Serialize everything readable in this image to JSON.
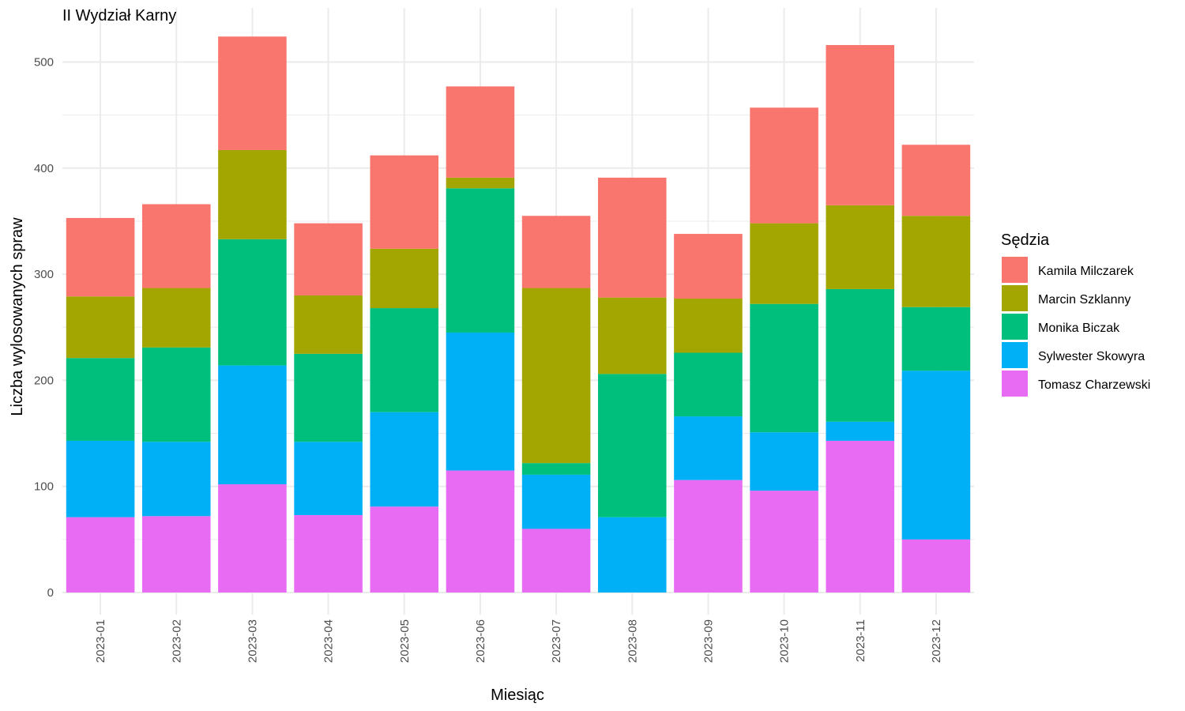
{
  "chart_data": {
    "type": "bar",
    "stacked": true,
    "title": "II Wydział Karny",
    "xlabel": "Miesiąc",
    "ylabel": "Liczba wylosowanych spraw",
    "ylim": [
      0,
      545
    ],
    "yticks": [
      0,
      100,
      200,
      300,
      400,
      500
    ],
    "grid": true,
    "legend_position": "right",
    "legend_title": "Sędzia",
    "categories": [
      "2023-01",
      "2023-02",
      "2023-03",
      "2023-04",
      "2023-05",
      "2023-06",
      "2023-07",
      "2023-08",
      "2023-09",
      "2023-10",
      "2023-11",
      "2023-12"
    ],
    "series": [
      {
        "name": "Tomasz Charzewski",
        "color": "#E76BF3",
        "values": [
          71,
          72,
          102,
          73,
          81,
          115,
          60,
          0,
          106,
          96,
          143,
          50
        ]
      },
      {
        "name": "Sylwester Skowyra",
        "color": "#00B0F6",
        "values": [
          72,
          70,
          112,
          69,
          89,
          130,
          51,
          71,
          60,
          55,
          18,
          159
        ]
      },
      {
        "name": "Monika Biczak",
        "color": "#00BF7D",
        "values": [
          78,
          89,
          119,
          83,
          98,
          136,
          11,
          135,
          60,
          121,
          125,
          60
        ]
      },
      {
        "name": "Marcin Szklanny",
        "color": "#A3A500",
        "values": [
          58,
          56,
          84,
          55,
          56,
          10,
          165,
          72,
          51,
          76,
          79,
          86
        ]
      },
      {
        "name": "Kamila Milczarek",
        "color": "#F8766D",
        "values": [
          74,
          79,
          107,
          68,
          88,
          86,
          68,
          113,
          61,
          109,
          151,
          67
        ]
      }
    ],
    "legend_order": [
      "Kamila Milczarek",
      "Marcin Szklanny",
      "Monika Biczak",
      "Sylwester Skowyra",
      "Tomasz Charzewski"
    ]
  }
}
